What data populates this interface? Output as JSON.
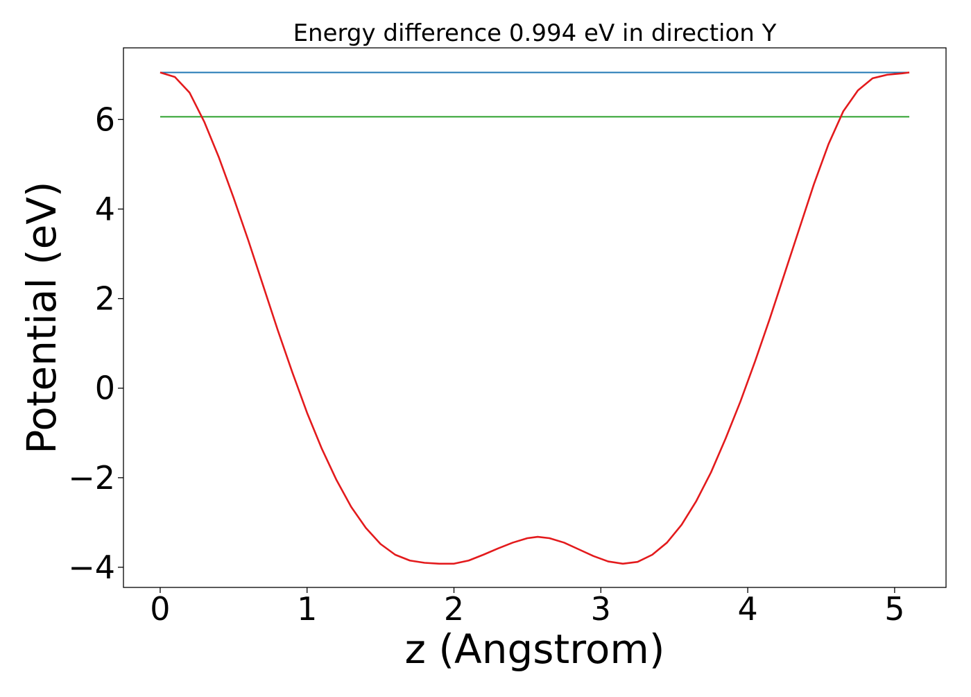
{
  "chart_data": {
    "type": "line",
    "title": "Energy difference 0.994 eV in direction Y",
    "xlabel": "z (Angstrom)",
    "ylabel": "Potential (eV)",
    "xlim": [
      -0.25,
      5.35
    ],
    "ylim": [
      -4.45,
      7.6
    ],
    "xticks": [
      0,
      1,
      2,
      3,
      4,
      5
    ],
    "yticks": [
      -4,
      -2,
      0,
      2,
      4,
      6
    ],
    "ytick_labels": [
      "−4",
      "−2",
      "0",
      "2",
      "4",
      "6"
    ],
    "grid": false,
    "legend": "none",
    "series": [
      {
        "color": "#1f77b4",
        "x": [
          0,
          5.1
        ],
        "y": [
          7.05,
          7.05
        ]
      },
      {
        "color": "#2ca02c",
        "x": [
          0,
          5.1
        ],
        "y": [
          6.06,
          6.06
        ]
      },
      {
        "color": "#e31a1c",
        "x": [
          0,
          0.1,
          0.2,
          0.3,
          0.4,
          0.5,
          0.6,
          0.7,
          0.8,
          0.9,
          1.0,
          1.1,
          1.2,
          1.3,
          1.4,
          1.5,
          1.6,
          1.7,
          1.8,
          1.9,
          2.0,
          2.1,
          2.2,
          2.3,
          2.4,
          2.5,
          2.57,
          2.65,
          2.75,
          2.85,
          2.95,
          3.05,
          3.15,
          3.25,
          3.35,
          3.45,
          3.55,
          3.65,
          3.75,
          3.85,
          3.95,
          4.05,
          4.15,
          4.25,
          4.35,
          4.45,
          4.55,
          4.65,
          4.75,
          4.85,
          4.95,
          5.05,
          5.1
        ],
        "y": [
          7.05,
          6.95,
          6.6,
          5.95,
          5.15,
          4.25,
          3.3,
          2.3,
          1.3,
          0.35,
          -0.55,
          -1.35,
          -2.05,
          -2.65,
          -3.12,
          -3.48,
          -3.72,
          -3.85,
          -3.9,
          -3.92,
          -3.92,
          -3.85,
          -3.72,
          -3.58,
          -3.45,
          -3.35,
          -3.32,
          -3.35,
          -3.45,
          -3.6,
          -3.75,
          -3.87,
          -3.92,
          -3.88,
          -3.72,
          -3.45,
          -3.05,
          -2.52,
          -1.88,
          -1.12,
          -0.3,
          0.6,
          1.55,
          2.55,
          3.55,
          4.55,
          5.45,
          6.18,
          6.65,
          6.92,
          7.0,
          7.03,
          7.05
        ]
      }
    ]
  }
}
